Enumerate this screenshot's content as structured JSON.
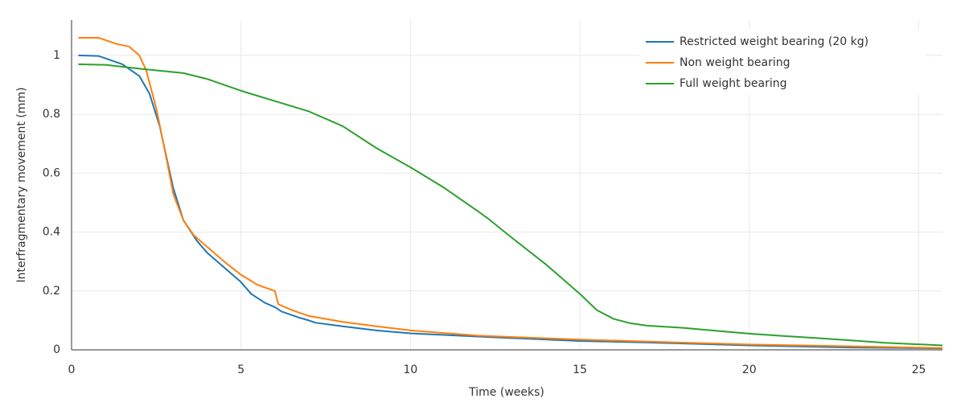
{
  "chart_data": {
    "type": "line",
    "x_label": "Time (weeks)",
    "y_label": "Interfragmentary movement (mm)",
    "xlim": [
      0,
      25.7
    ],
    "ylim": [
      0,
      1.12
    ],
    "xticks": [
      0,
      5,
      10,
      15,
      20,
      25
    ],
    "yticks": [
      0,
      0.2,
      0.4,
      0.6,
      0.8,
      1
    ],
    "grid": true,
    "legend": "top-right",
    "series": [
      {
        "name": "Restricted weight bearing (20 kg)",
        "color": "#1f77b4",
        "x": [
          0.2,
          0.8,
          1.0,
          1.5,
          2.0,
          2.3,
          2.6,
          3.0,
          3.3,
          3.7,
          4.0,
          4.5,
          5.0,
          5.3,
          5.7,
          6.0,
          6.2,
          6.7,
          7.0,
          7.2,
          8.0,
          9.0,
          10,
          12,
          15,
          17,
          20,
          23,
          25.7
        ],
        "values": [
          1.0,
          0.998,
          0.99,
          0.97,
          0.93,
          0.87,
          0.76,
          0.55,
          0.44,
          0.37,
          0.33,
          0.28,
          0.23,
          0.19,
          0.16,
          0.145,
          0.13,
          0.11,
          0.1,
          0.092,
          0.08,
          0.066,
          0.056,
          0.045,
          0.03,
          0.025,
          0.015,
          0.008,
          0.005
        ]
      },
      {
        "name": "Non weight bearing",
        "color": "#ff7f0e",
        "x": [
          0.2,
          0.8,
          1.3,
          1.7,
          2.0,
          2.2,
          2.5,
          2.8,
          3.0,
          3.3,
          3.6,
          4.0,
          4.5,
          5.0,
          5.5,
          6.0,
          6.1,
          6.5,
          7.0,
          8.0,
          9.0,
          10,
          12,
          15,
          17,
          20,
          23,
          25.7
        ],
        "values": [
          1.06,
          1.06,
          1.04,
          1.03,
          1.0,
          0.95,
          0.82,
          0.65,
          0.53,
          0.44,
          0.39,
          0.35,
          0.3,
          0.255,
          0.22,
          0.2,
          0.155,
          0.135,
          0.115,
          0.095,
          0.08,
          0.066,
          0.048,
          0.035,
          0.028,
          0.018,
          0.012,
          0.006
        ]
      },
      {
        "name": "Full weight bearing",
        "color": "#2ca02c",
        "x": [
          0.2,
          1.0,
          2.0,
          3.3,
          4.0,
          5.0,
          6.0,
          7.0,
          8.0,
          9.0,
          10,
          11,
          12,
          12.3,
          13,
          14,
          14.5,
          15,
          15.5,
          16,
          16.5,
          17,
          18,
          19,
          20,
          21,
          22,
          23,
          24,
          25.7
        ],
        "values": [
          0.97,
          0.968,
          0.955,
          0.94,
          0.92,
          0.88,
          0.845,
          0.81,
          0.76,
          0.685,
          0.62,
          0.55,
          0.47,
          0.445,
          0.38,
          0.29,
          0.24,
          0.19,
          0.135,
          0.105,
          0.09,
          0.082,
          0.075,
          0.065,
          0.055,
          0.047,
          0.04,
          0.032,
          0.024,
          0.015
        ]
      }
    ]
  }
}
